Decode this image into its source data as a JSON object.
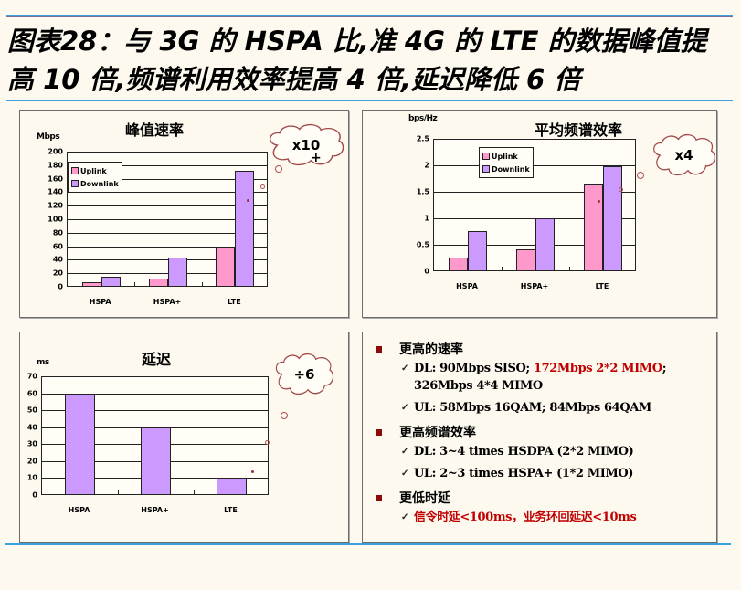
{
  "header": {
    "title_line1": "图表28：与 3G 的 HSPA 比,准 4G 的 LTE 的数据峰值提",
    "title_line2": "高 10 倍,频谱利用效率提高 4 倍,延迟降低 6 倍"
  },
  "colors": {
    "uplink": "#ff99cc",
    "downlink": "#cc99ff",
    "rule": "#3aa0db",
    "bullet": "#8b0a0a",
    "highlight_red": "#c00000",
    "background": "#fdf9ef"
  },
  "chart_data": [
    {
      "type": "bar",
      "title": "峰值速率",
      "ylabel": "Mbps",
      "xlabel": "",
      "categories": [
        "HSPA",
        "HSPA+",
        "LTE"
      ],
      "series": [
        {
          "name": "Uplink",
          "values": [
            5.76,
            11.5,
            57.6
          ]
        },
        {
          "name": "Downlink",
          "values": [
            14.4,
            42,
            172.8
          ]
        }
      ],
      "yticks": [
        "0",
        "20",
        "40",
        "60",
        "80",
        "100",
        "120",
        "140",
        "160",
        "180",
        "200"
      ],
      "ylim": [
        0,
        200
      ],
      "grid": true,
      "legend_position": "top-left inside",
      "annotation": "x10"
    },
    {
      "type": "bar",
      "title": "平均频谱效率",
      "ylabel": "bps/Hz",
      "xlabel": "",
      "categories": [
        "HSPA",
        "HSPA+",
        "LTE"
      ],
      "series": [
        {
          "name": "Uplink",
          "values": [
            0.25,
            0.4,
            1.65
          ]
        },
        {
          "name": "Downlink",
          "values": [
            0.75,
            1.0,
            2.0
          ]
        }
      ],
      "yticks": [
        "0",
        "0.5",
        "1",
        "1.5",
        "2",
        "2.5"
      ],
      "ylim": [
        0,
        2.5
      ],
      "grid": true,
      "legend_position": "top-left inside",
      "annotation": "x4"
    },
    {
      "type": "bar",
      "title": "延迟",
      "ylabel": "ms",
      "xlabel": "",
      "categories": [
        "HSPA",
        "HSPA+",
        "LTE"
      ],
      "series": [
        {
          "name": "Latency",
          "values": [
            60,
            40,
            10
          ]
        }
      ],
      "yticks": [
        "0",
        "10",
        "20",
        "30",
        "40",
        "50",
        "60",
        "70"
      ],
      "ylim": [
        0,
        70
      ],
      "grid": true,
      "legend_position": "none",
      "annotation": "÷6"
    }
  ],
  "legend": {
    "uplink": "Uplink",
    "downlink": "Downlink"
  },
  "bullets": [
    {
      "heading": "更高的速率",
      "items": [
        {
          "parts": [
            {
              "text": "DL: 90Mbps SISO; ",
              "red": false
            },
            {
              "text": "172Mbps 2*2 MIMO",
              "red": true
            },
            {
              "text": "; 326Mbps 4*4 MIMO",
              "red": false
            }
          ]
        },
        {
          "parts": [
            {
              "text": "UL: 58Mbps 16QAM; 84Mbps 64QAM",
              "red": false
            }
          ]
        }
      ]
    },
    {
      "heading": "更高频谱效率",
      "items": [
        {
          "parts": [
            {
              "text": "DL: 3~4 times HSDPA (2*2 MIMO)",
              "red": false
            }
          ]
        },
        {
          "parts": [
            {
              "text": "UL: 2~3 times HSPA+ (1*2 MIMO)",
              "red": false
            }
          ]
        }
      ]
    },
    {
      "heading": "更低时延",
      "items": [
        {
          "parts": [
            {
              "text": "信令时延<100ms，业务环回延迟<10ms",
              "red": true
            }
          ]
        }
      ]
    }
  ],
  "check_glyph": "✓"
}
